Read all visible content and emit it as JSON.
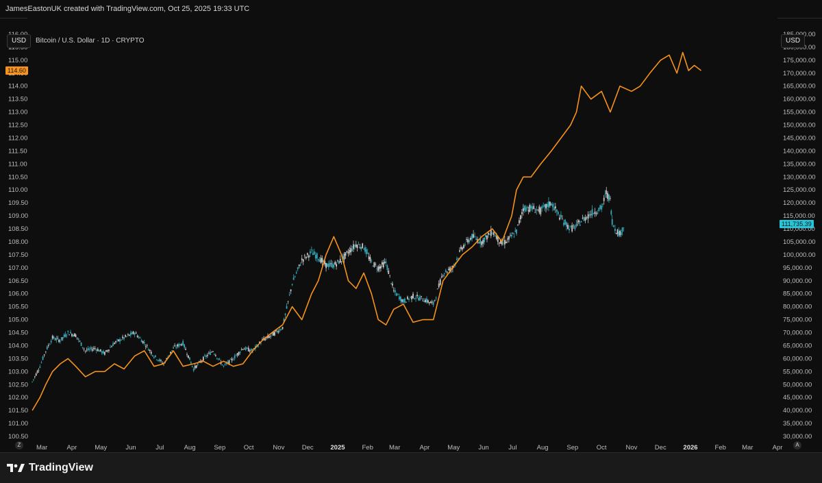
{
  "header": {
    "attribution": "JamesEastonUK created with TradingView.com, Oct 25, 2025 19:33 UTC"
  },
  "left_scale": {
    "currency_label": "USD"
  },
  "right_scale": {
    "currency_label": "USD"
  },
  "legend": {
    "symbol_text": "Bitcoin / U.S. Dollar · 1D · CRYPTO"
  },
  "price_tags": {
    "left": "114.60",
    "right": "111,735.39"
  },
  "corner_buttons": {
    "left": "Z",
    "right": "A"
  },
  "footer": {
    "brand": "TradingView"
  },
  "colors": {
    "background": "#0e0e0e",
    "orange_line": "#f7931a",
    "candle_teal": "#2a8fa6",
    "candle_up": "#35a7b6",
    "candle_down": "#c8c8c8",
    "right_tag": "#26c6da",
    "left_tag": "#f7931a"
  },
  "chart_data": {
    "type": "line",
    "x_tick_labels": [
      "Mar",
      "Apr",
      "May",
      "Jun",
      "Jul",
      "Aug",
      "Sep",
      "Oct",
      "Nov",
      "Dec",
      "2025",
      "Feb",
      "Mar",
      "Apr",
      "May",
      "Jun",
      "Jul",
      "Aug",
      "Sep",
      "Oct",
      "Nov",
      "Dec",
      "2026",
      "Feb",
      "Mar",
      "Apr"
    ],
    "x_tick_bold": [
      false,
      false,
      false,
      false,
      false,
      false,
      false,
      false,
      false,
      false,
      true,
      false,
      false,
      false,
      false,
      false,
      false,
      false,
      false,
      false,
      false,
      false,
      true,
      false,
      false,
      false
    ],
    "left_axis": {
      "ticks": [
        "116.00",
        "115.50",
        "115.00",
        "114.50",
        "114.00",
        "113.50",
        "113.00",
        "112.50",
        "112.00",
        "111.50",
        "111.00",
        "110.50",
        "110.00",
        "109.50",
        "109.00",
        "108.50",
        "108.00",
        "107.50",
        "107.00",
        "106.50",
        "106.00",
        "105.50",
        "105.00",
        "104.50",
        "104.00",
        "103.50",
        "103.00",
        "102.50",
        "102.00",
        "101.50",
        "101.00",
        "100.50"
      ],
      "range": [
        100.5,
        116.0
      ]
    },
    "right_axis": {
      "ticks": [
        "185,000.00",
        "180,000.00",
        "175,000.00",
        "170,000.00",
        "165,000.00",
        "160,000.00",
        "155,000.00",
        "150,000.00",
        "145,000.00",
        "140,000.00",
        "135,000.00",
        "130,000.00",
        "125,000.00",
        "120,000.00",
        "115,000.00",
        "110,000.00",
        "105,000.00",
        "100,000.00",
        "95,000.00",
        "90,000.00",
        "85,000.00",
        "80,000.00",
        "75,000.00",
        "70,000.00",
        "65,000.00",
        "60,000.00",
        "55,000.00",
        "50,000.00",
        "45,000.00",
        "40,000.00",
        "35,000.00",
        "30,000.00"
      ],
      "range": [
        30000,
        185000
      ]
    },
    "series": [
      {
        "type": "line",
        "x": [
          "2024-02-20",
          "2024-02-28",
          "2024-03-05",
          "2024-03-12",
          "2024-03-20",
          "2024-03-28",
          "2024-04-05",
          "2024-04-15",
          "2024-04-25",
          "2024-05-05",
          "2024-05-15",
          "2024-05-25",
          "2024-06-05",
          "2024-06-15",
          "2024-06-25",
          "2024-07-05",
          "2024-07-15",
          "2024-07-25",
          "2024-08-05",
          "2024-08-15",
          "2024-08-25",
          "2024-09-05",
          "2024-09-15",
          "2024-09-25",
          "2024-10-05",
          "2024-10-15",
          "2024-10-25",
          "2024-11-05",
          "2024-11-15",
          "2024-11-25",
          "2024-12-05",
          "2024-12-12",
          "2024-12-20",
          "2024-12-28",
          "2025-01-05",
          "2025-01-12",
          "2025-01-20",
          "2025-01-28",
          "2025-02-05",
          "2025-02-12",
          "2025-02-20",
          "2025-02-28",
          "2025-03-10",
          "2025-03-20",
          "2025-03-30",
          "2025-04-10",
          "2025-04-20",
          "2025-04-30",
          "2025-05-10",
          "2025-05-20",
          "2025-05-30",
          "2025-06-10",
          "2025-06-20",
          "2025-06-30",
          "2025-07-05",
          "2025-07-12",
          "2025-07-20",
          "2025-07-30",
          "2025-08-10",
          "2025-08-20",
          "2025-08-30",
          "2025-09-05",
          "2025-09-10",
          "2025-09-20",
          "2025-10-01",
          "2025-10-10",
          "2025-10-20",
          "2025-11-01",
          "2025-11-10",
          "2025-11-20",
          "2025-12-01",
          "2025-12-10",
          "2025-12-18",
          "2025-12-24",
          "2025-12-30",
          "2026-01-05",
          "2026-01-12"
        ],
        "values": [
          101.5,
          102.0,
          102.5,
          103.0,
          103.3,
          103.5,
          103.2,
          102.8,
          103.0,
          103.0,
          103.3,
          103.1,
          103.6,
          103.8,
          103.2,
          103.3,
          103.8,
          103.2,
          103.3,
          103.4,
          103.2,
          103.4,
          103.2,
          103.3,
          103.8,
          104.2,
          104.5,
          104.8,
          105.5,
          105.0,
          106.0,
          106.5,
          107.5,
          108.2,
          107.5,
          106.5,
          106.2,
          106.8,
          106.0,
          105.0,
          104.8,
          105.4,
          105.6,
          104.9,
          105.0,
          105.0,
          106.5,
          107.0,
          107.5,
          107.8,
          108.2,
          108.5,
          108.0,
          109.0,
          110.0,
          110.5,
          110.5,
          111.0,
          111.5,
          112.0,
          112.5,
          113.0,
          114.0,
          113.5,
          113.8,
          113.0,
          114.0,
          113.8,
          114.0,
          114.5,
          115.0,
          115.2,
          114.5,
          115.3,
          114.6,
          114.8,
          114.6
        ],
        "axis": "left"
      },
      {
        "type": "candlestick",
        "x": [
          "2024-02-20",
          "2024-02-28",
          "2024-03-05",
          "2024-03-12",
          "2024-03-20",
          "2024-03-28",
          "2024-04-05",
          "2024-04-15",
          "2024-04-25",
          "2024-05-05",
          "2024-05-15",
          "2024-05-25",
          "2024-06-05",
          "2024-06-15",
          "2024-06-25",
          "2024-07-05",
          "2024-07-15",
          "2024-07-25",
          "2024-08-05",
          "2024-08-15",
          "2024-08-25",
          "2024-09-05",
          "2024-09-15",
          "2024-09-25",
          "2024-10-05",
          "2024-10-15",
          "2024-10-25",
          "2024-11-05",
          "2024-11-15",
          "2024-11-25",
          "2024-12-05",
          "2024-12-12",
          "2024-12-20",
          "2024-12-28",
          "2025-01-05",
          "2025-01-12",
          "2025-01-20",
          "2025-01-28",
          "2025-02-05",
          "2025-02-12",
          "2025-02-20",
          "2025-02-28",
          "2025-03-10",
          "2025-03-20",
          "2025-03-30",
          "2025-04-10",
          "2025-04-20",
          "2025-04-30",
          "2025-05-10",
          "2025-05-20",
          "2025-05-30",
          "2025-06-10",
          "2025-06-20",
          "2025-06-30",
          "2025-07-05",
          "2025-07-12",
          "2025-07-20",
          "2025-07-30",
          "2025-08-10",
          "2025-08-20",
          "2025-08-30",
          "2025-09-05",
          "2025-09-10",
          "2025-09-20",
          "2025-10-01",
          "2025-10-06",
          "2025-10-10",
          "2025-10-12",
          "2025-10-15",
          "2025-10-20",
          "2025-10-25"
        ],
        "values": [
          51000,
          57000,
          63000,
          68000,
          67000,
          70000,
          69000,
          63000,
          64000,
          62000,
          66000,
          68000,
          70000,
          66000,
          61000,
          58000,
          64000,
          66000,
          56000,
          60000,
          63000,
          57000,
          60000,
          64000,
          63000,
          67000,
          69000,
          72000,
          89000,
          98000,
          101000,
          99000,
          96000,
          96000,
          98000,
          101000,
          104000,
          103000,
          97000,
          95000,
          97000,
          86000,
          82000,
          84000,
          83000,
          81000,
          93000,
          95000,
          103000,
          107000,
          105000,
          109000,
          104000,
          107000,
          109000,
          118000,
          118000,
          117000,
          120000,
          114000,
          110000,
          111000,
          113000,
          116000,
          118000,
          124000,
          121000,
          113000,
          110000,
          108000,
          111735.39
        ],
        "axis": "right"
      }
    ]
  }
}
